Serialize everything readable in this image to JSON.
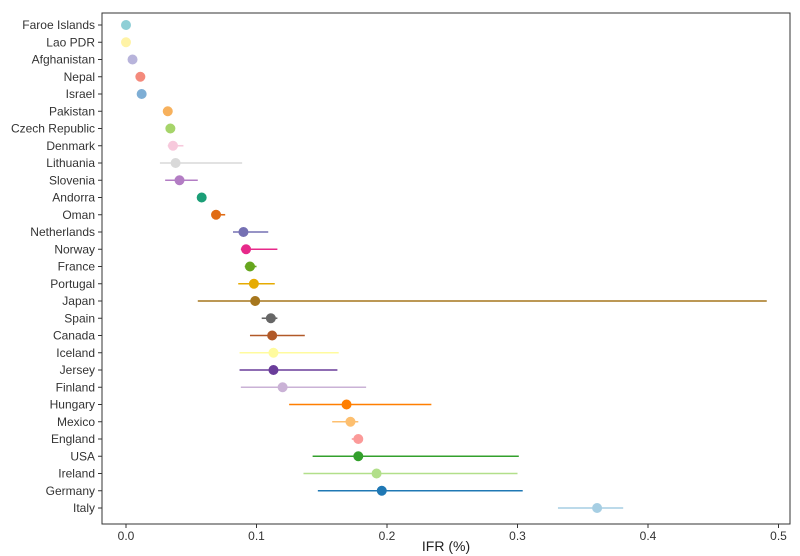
{
  "chart_data": {
    "type": "scatter",
    "title": "",
    "xlabel": "IFR (%)",
    "ylabel": "",
    "xlim": [
      -0.025,
      0.515
    ],
    "xticks": [
      "0.0",
      "0.1",
      "0.2",
      "0.3",
      "0.4",
      "0.5"
    ],
    "grid": false,
    "legend": "none",
    "series": [
      {
        "country": "Faroe Islands",
        "ifr": 0.0,
        "low": 0.0,
        "high": 0.0,
        "color": "#8fcfd6"
      },
      {
        "country": "Lao PDR",
        "ifr": 0.0,
        "low": 0.0,
        "high": 0.0,
        "color": "#fff3a6"
      },
      {
        "country": "Afghanistan",
        "ifr": 0.005,
        "low": 0.005,
        "high": 0.005,
        "color": "#b8b4db"
      },
      {
        "country": "Nepal",
        "ifr": 0.011,
        "low": 0.011,
        "high": 0.011,
        "color": "#f48a7c"
      },
      {
        "country": "Israel",
        "ifr": 0.012,
        "low": 0.012,
        "high": 0.012,
        "color": "#7eaed5"
      },
      {
        "country": "Pakistan",
        "ifr": 0.032,
        "low": 0.032,
        "high": 0.032,
        "color": "#f7b15d"
      },
      {
        "country": "Czech Republic",
        "ifr": 0.034,
        "low": 0.034,
        "high": 0.034,
        "color": "#a6d46a"
      },
      {
        "country": "Denmark",
        "ifr": 0.036,
        "low": 0.032,
        "high": 0.044,
        "color": "#f7c9dc"
      },
      {
        "country": "Lithuania",
        "ifr": 0.038,
        "low": 0.026,
        "high": 0.089,
        "color": "#d9d9d9"
      },
      {
        "country": "Slovenia",
        "ifr": 0.041,
        "low": 0.03,
        "high": 0.055,
        "color": "#b37dc4"
      },
      {
        "country": "Andorra",
        "ifr": 0.058,
        "low": 0.058,
        "high": 0.058,
        "color": "#1b9e77"
      },
      {
        "country": "Oman",
        "ifr": 0.069,
        "low": 0.066,
        "high": 0.076,
        "color": "#e06c15"
      },
      {
        "country": "Netherlands",
        "ifr": 0.09,
        "low": 0.082,
        "high": 0.109,
        "color": "#7570b3"
      },
      {
        "country": "Norway",
        "ifr": 0.092,
        "low": 0.088,
        "high": 0.116,
        "color": "#e7298a"
      },
      {
        "country": "France",
        "ifr": 0.095,
        "low": 0.091,
        "high": 0.1,
        "color": "#66a61e"
      },
      {
        "country": "Portugal",
        "ifr": 0.098,
        "low": 0.086,
        "high": 0.114,
        "color": "#e6ab02"
      },
      {
        "country": "Japan",
        "ifr": 0.099,
        "low": 0.055,
        "high": 0.491,
        "color": "#a6761d"
      },
      {
        "country": "Spain",
        "ifr": 0.111,
        "low": 0.104,
        "high": 0.116,
        "color": "#666666"
      },
      {
        "country": "Canada",
        "ifr": 0.112,
        "low": 0.095,
        "high": 0.137,
        "color": "#b15928"
      },
      {
        "country": "Iceland",
        "ifr": 0.113,
        "low": 0.087,
        "high": 0.163,
        "color": "#fffb9e"
      },
      {
        "country": "Jersey",
        "ifr": 0.113,
        "low": 0.087,
        "high": 0.162,
        "color": "#6a3d9a"
      },
      {
        "country": "Finland",
        "ifr": 0.12,
        "low": 0.088,
        "high": 0.184,
        "color": "#cab2d6"
      },
      {
        "country": "Hungary",
        "ifr": 0.169,
        "low": 0.125,
        "high": 0.234,
        "color": "#ff7f00"
      },
      {
        "country": "Mexico",
        "ifr": 0.172,
        "low": 0.158,
        "high": 0.178,
        "color": "#fdbf6f"
      },
      {
        "country": "England",
        "ifr": 0.178,
        "low": 0.173,
        "high": 0.181,
        "color": "#fb9a99"
      },
      {
        "country": "USA",
        "ifr": 0.178,
        "low": 0.143,
        "high": 0.301,
        "color": "#33a02c"
      },
      {
        "country": "Ireland",
        "ifr": 0.192,
        "low": 0.136,
        "high": 0.3,
        "color": "#b2df8a"
      },
      {
        "country": "Germany",
        "ifr": 0.196,
        "low": 0.147,
        "high": 0.304,
        "color": "#1f78b4"
      },
      {
        "country": "Italy",
        "ifr": 0.361,
        "low": 0.331,
        "high": 0.381,
        "color": "#a6cee3"
      }
    ]
  }
}
